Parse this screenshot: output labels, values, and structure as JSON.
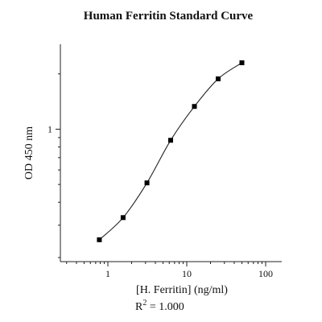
{
  "chart_data": {
    "type": "scatter",
    "title": "Human Ferritin Standard Curve",
    "xlabel": "[H. Ferritin] (ng/ml)",
    "ylabel": "OD 450 nm",
    "x_scale": "log",
    "y_scale": "log",
    "xlim": [
      0.25,
      160
    ],
    "ylim": [
      0.19,
      2.9
    ],
    "x_major_ticks": [
      1,
      10,
      100
    ],
    "x_tick_labels": [
      "1",
      "10",
      "100"
    ],
    "y_major_ticks": [
      1
    ],
    "y_tick_labels": [
      "1"
    ],
    "grid": false,
    "legend": "none",
    "series": [
      {
        "x": [
          0.78,
          1.56,
          3.13,
          6.25,
          12.5,
          25,
          50
        ],
        "y": [
          0.25,
          0.33,
          0.51,
          0.87,
          1.33,
          1.88,
          2.3
        ]
      }
    ],
    "annotation": {
      "prefix": "R",
      "superscript": "2",
      "suffix": " = 1.000"
    },
    "colors": {
      "axis": "#222222",
      "marker": "#000000",
      "curve": "#222222"
    }
  }
}
